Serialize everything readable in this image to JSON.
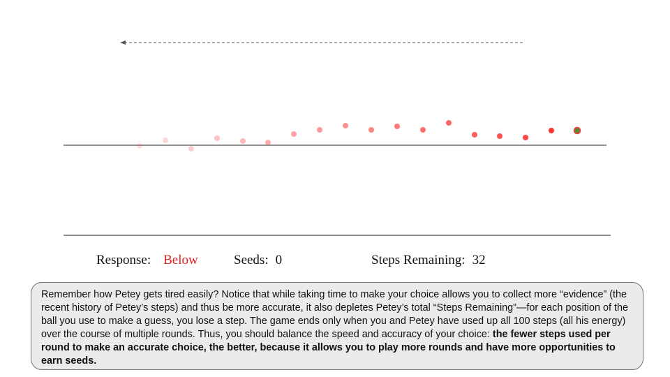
{
  "game": {
    "trail_opacity": [
      0.15,
      0.2,
      0.25,
      0.3,
      0.35,
      0.4,
      0.45,
      0.5,
      0.55,
      0.6,
      0.65,
      0.7,
      0.75,
      0.8,
      0.85,
      0.9,
      1.0
    ],
    "ball_color": "#ff3333",
    "current_ball_color": "#5a8a3a"
  },
  "status": {
    "response_label": "Response:",
    "response_value": "Below",
    "seeds_label": "Seeds:",
    "seeds_value": "0",
    "steps_label": "Steps Remaining:",
    "steps_value": "32"
  },
  "info": {
    "text": "Remember how Petey gets tired easily? Notice that while taking time to make your choice allows you to collect more “evidence” (the recent history of Petey’s steps) and thus be more accurate, it also depletes Petey’s total “Steps Remaining”—for each position of the ball you use to make a guess, you lose a step. The game ends only when you and Petey have used up all 100 steps (all his energy) over the course of multiple rounds. Thus, you should balance the speed and accuracy of your choice: ",
    "bold_text": "the fewer steps used per round to make an accurate choice, the better, because it allows you to play more rounds and have more opportunities to earn seeds."
  }
}
